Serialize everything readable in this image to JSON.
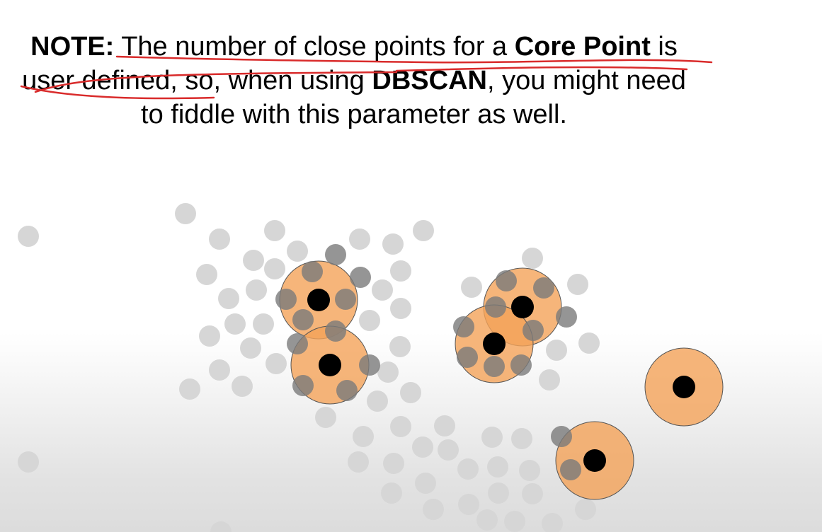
{
  "note": {
    "label": "NOTE:",
    "text1": " The number of close points for a ",
    "core_point": "Core Point",
    "text2": " is user defined, so, when using ",
    "dbscan": "DBSCAN",
    "text3": ", you might need to fiddle with this parameter as well."
  },
  "colors": {
    "neighborhood_fill": "#f4a259",
    "core_point": "#000000",
    "light_point": "#d6d6d6",
    "dark_point": "#7a7a7a",
    "annotation": "#d92b2b"
  }
}
